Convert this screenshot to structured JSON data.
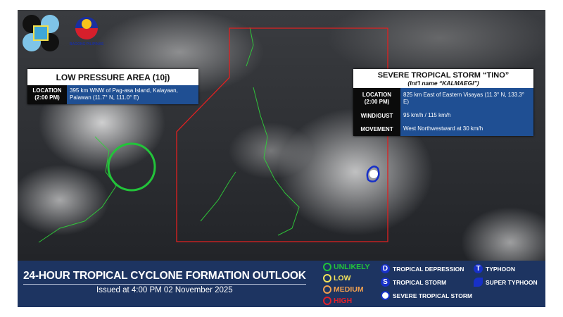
{
  "logos": {
    "pagasa": "PAGASA",
    "bagong_pilipinas": "BAGONG PILIPINAS"
  },
  "lpa": {
    "title": "LOW PRESSURE AREA (10j)",
    "location_label": "LOCATION\n(2:00 PM)",
    "location_value": "395 km WNW of Pag-asa Island, Kalayaan, Palawan (11.7° N, 111.0° E)",
    "formation_likelihood": "unlikely"
  },
  "storm": {
    "title": "SEVERE TROPICAL STORM “TINO”",
    "subtitle": "(Int'l name “KALMAEGI”)",
    "location_label": "LOCATION\n(2:00 PM)",
    "location_value": "825 km East of Eastern Visayas (11.3° N, 133.3° E)",
    "wind_label": "WIND/GUST",
    "wind_value": "95 km/h / 115 km/h",
    "movement_label": "MOVEMENT",
    "movement_value": "West Northwestward at 30 km/h"
  },
  "outlook": {
    "title": "24-HOUR TROPICAL CYCLONE FORMATION OUTLOOK",
    "issued": "Issued at 4:00 PM   02 November 2025"
  },
  "likelihood": [
    {
      "label": "UNLIKELY",
      "color": "#22c43a"
    },
    {
      "label": "LOW",
      "color": "#f3e35a"
    },
    {
      "label": "MEDIUM",
      "color": "#f0a050"
    },
    {
      "label": "HIGH",
      "color": "#e0202a"
    }
  ],
  "symbols": [
    {
      "glyph": "D",
      "label": "TROPICAL DEPRESSION"
    },
    {
      "glyph": "S",
      "label": "TROPICAL STORM"
    },
    {
      "glyph": "",
      "label": "SEVERE TROPICAL STORM"
    },
    {
      "glyph": "T",
      "label": "TYPHOON"
    },
    {
      "glyph": "",
      "label": "SUPER TYPHOON"
    }
  ],
  "colors": {
    "par_boundary": "#e02020",
    "banner": "#1d3461",
    "info_value_bg": "#1f4f93"
  }
}
